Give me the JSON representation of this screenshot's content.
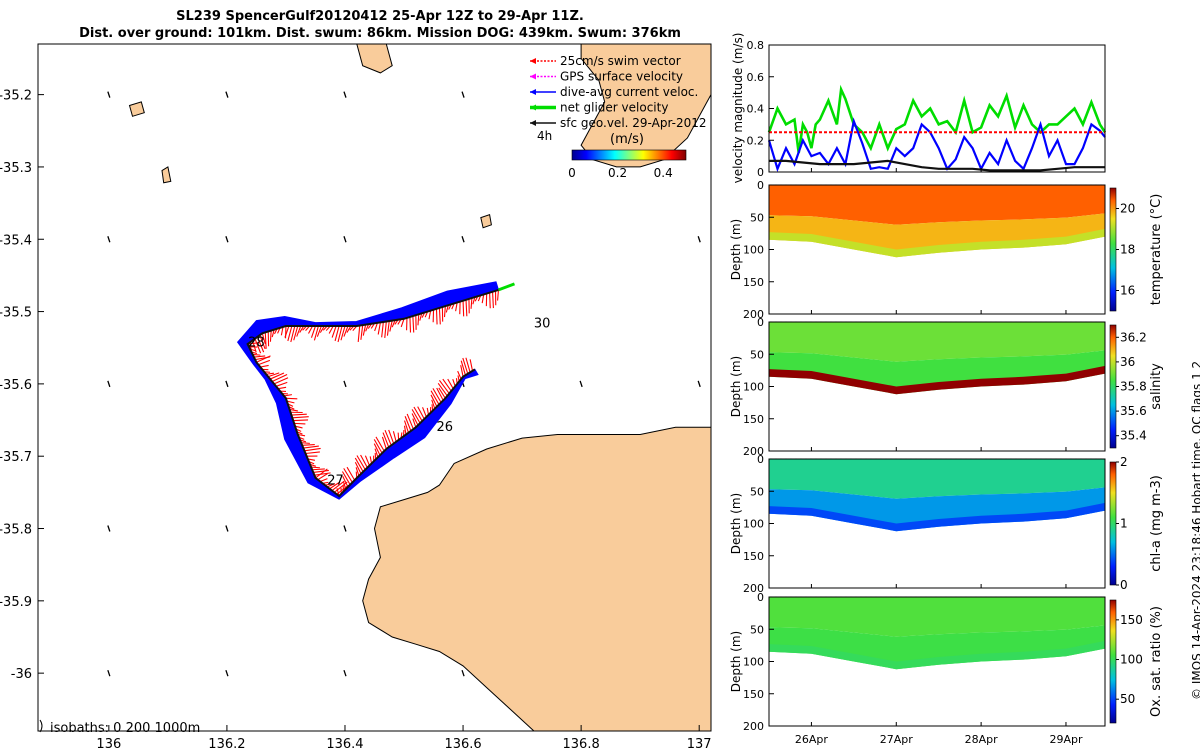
{
  "title": {
    "line1": "SL239 SpencerGulf20120412 25-Apr 12Z to 29-Apr 11Z.",
    "line2": "Dist. over ground: 101km. Dist. swum: 86km. Mission DOG: 439km. Swum: 376km"
  },
  "credit": "© IMOS 14-Apr-2024 23:18:46 Hobart time. QC flags 1  2",
  "colors": {
    "land": "#f9cc9b",
    "swim_vector": "#ff0000",
    "dive_avg_current": "#0000ff",
    "net_glider": "#00dd00",
    "sfc_geo": "#111111",
    "gps_surface": "#ff00ff"
  },
  "chart_data": [
    {
      "type": "map",
      "xlim": [
        135.88,
        137.02
      ],
      "ylim": [
        -36.08,
        -35.13
      ],
      "x_ticks": [
        "136",
        "136.2",
        "136.4",
        "136.6",
        "136.8",
        "137"
      ],
      "x_tick_values": [
        136,
        136.2,
        136.4,
        136.6,
        136.8,
        137
      ],
      "y_ticks": [
        "-35.2",
        "-35.3",
        "-35.4",
        "-35.5",
        "-35.6",
        "-35.7",
        "-35.8",
        "-35.9",
        "-36"
      ],
      "y_tick_values": [
        -35.2,
        -35.3,
        -35.4,
        -35.5,
        -35.6,
        -35.7,
        -35.8,
        -35.9,
        -36
      ],
      "legend": [
        {
          "label": "25cm/s swim vector",
          "color": "#ff0000",
          "style": "dashed"
        },
        {
          "label": "GPS surface velocity",
          "color": "#ff00ff",
          "style": "dashed"
        },
        {
          "label": "dive-avg current veloc.",
          "color": "#0000ff",
          "style": "solid"
        },
        {
          "label": "net glider velocity",
          "color": "#00dd00",
          "style": "thick"
        },
        {
          "label": "sfc geo.vel. 29-Apr-2012",
          "color": "#111111",
          "style": "solid"
        }
      ],
      "legend_placement": "top-right",
      "colorbar": {
        "label": "(m/s)",
        "ticks": [
          "0",
          "0.2",
          "0.4"
        ],
        "tick_values": [
          0,
          0.2,
          0.4
        ],
        "range": [
          0,
          0.5
        ]
      },
      "time_marker_label": "4h",
      "isobath_label": "isobaths: 0   200  1000m",
      "day_labels": [
        {
          "text": "26",
          "lon": 136.555,
          "lat": -35.665
        },
        {
          "text": "27",
          "lon": 136.37,
          "lat": -35.739
        },
        {
          "text": "28",
          "lon": 136.236,
          "lat": -35.548
        },
        {
          "text": "30",
          "lon": 136.72,
          "lat": -35.522
        }
      ],
      "glider_track": [
        [
          136.66,
          -35.47
        ],
        [
          136.58,
          -35.49
        ],
        [
          136.5,
          -35.51
        ],
        [
          136.42,
          -35.52
        ],
        [
          136.35,
          -35.52
        ],
        [
          136.3,
          -35.52
        ],
        [
          136.26,
          -35.53
        ],
        [
          136.235,
          -35.545
        ],
        [
          136.25,
          -35.57
        ],
        [
          136.27,
          -35.59
        ],
        [
          136.3,
          -35.62
        ],
        [
          136.32,
          -35.67
        ],
        [
          136.35,
          -35.73
        ],
        [
          136.39,
          -35.755
        ],
        [
          136.42,
          -35.73
        ],
        [
          136.47,
          -35.69
        ],
        [
          136.52,
          -35.66
        ],
        [
          136.57,
          -35.62
        ],
        [
          136.6,
          -35.59
        ],
        [
          136.62,
          -35.58
        ]
      ],
      "grid_current_vectors": [
        [
          136.0,
          -35.2
        ],
        [
          136.2,
          -35.2
        ],
        [
          136.4,
          -35.2
        ],
        [
          136.6,
          -35.2
        ],
        [
          136.0,
          -35.4
        ],
        [
          136.2,
          -35.4
        ],
        [
          136.4,
          -35.4
        ],
        [
          136.6,
          -35.4
        ],
        [
          137.0,
          -35.4
        ],
        [
          136.0,
          -35.6
        ],
        [
          136.2,
          -35.6
        ],
        [
          136.4,
          -35.6
        ],
        [
          136.6,
          -35.6
        ],
        [
          136.8,
          -35.6
        ],
        [
          137.0,
          -35.6
        ],
        [
          136.0,
          -35.8
        ],
        [
          136.2,
          -35.8
        ],
        [
          136.4,
          -35.8
        ],
        [
          136.0,
          -36.0
        ],
        [
          136.2,
          -36.0
        ],
        [
          136.4,
          -36.0
        ],
        [
          136.6,
          -36.0
        ]
      ],
      "land_kangaroo_island": [
        [
          136.585,
          -35.71
        ],
        [
          136.64,
          -35.69
        ],
        [
          136.7,
          -35.675
        ],
        [
          136.76,
          -35.67
        ],
        [
          136.82,
          -35.67
        ],
        [
          136.9,
          -35.67
        ],
        [
          136.96,
          -35.66
        ],
        [
          137.02,
          -35.66
        ],
        [
          137.02,
          -36.08
        ],
        [
          136.72,
          -36.08
        ],
        [
          136.68,
          -36.05
        ],
        [
          136.64,
          -36.02
        ],
        [
          136.6,
          -35.99
        ],
        [
          136.56,
          -35.97
        ],
        [
          136.52,
          -35.96
        ],
        [
          136.48,
          -35.95
        ],
        [
          136.44,
          -35.93
        ],
        [
          136.43,
          -35.9
        ],
        [
          136.44,
          -35.87
        ],
        [
          136.46,
          -35.84
        ],
        [
          136.45,
          -35.8
        ],
        [
          136.46,
          -35.77
        ],
        [
          136.5,
          -35.76
        ],
        [
          136.54,
          -35.75
        ],
        [
          136.56,
          -35.74
        ]
      ],
      "land_peninsula_ne": [
        [
          136.8,
          -35.13
        ],
        [
          137.02,
          -35.13
        ],
        [
          137.02,
          -35.2
        ],
        [
          137.0,
          -35.23
        ],
        [
          136.98,
          -35.26
        ],
        [
          136.94,
          -35.29
        ],
        [
          136.9,
          -35.3
        ],
        [
          136.86,
          -35.3
        ],
        [
          136.82,
          -35.29
        ],
        [
          136.8,
          -35.27
        ],
        [
          136.82,
          -35.24
        ],
        [
          136.84,
          -35.21
        ],
        [
          136.83,
          -35.18
        ],
        [
          136.8,
          -35.15
        ]
      ],
      "land_islets": [
        [
          [
            136.42,
            -35.13
          ],
          [
            136.47,
            -35.13
          ],
          [
            136.48,
            -35.16
          ],
          [
            136.46,
            -35.17
          ],
          [
            136.43,
            -35.16
          ]
        ],
        [
          [
            136.035,
            -35.215
          ],
          [
            136.055,
            -35.21
          ],
          [
            136.06,
            -35.225
          ],
          [
            136.04,
            -35.23
          ]
        ],
        [
          [
            136.09,
            -35.305
          ],
          [
            136.1,
            -35.3
          ],
          [
            136.105,
            -35.32
          ],
          [
            136.093,
            -35.322
          ]
        ],
        [
          [
            136.63,
            -35.37
          ],
          [
            136.645,
            -35.366
          ],
          [
            136.648,
            -35.38
          ],
          [
            136.634,
            -35.384
          ]
        ]
      ]
    },
    {
      "type": "line",
      "ylabel": "velocity magnitude (m/s)",
      "ylim": [
        0,
        0.8
      ],
      "y_ticks": [
        "0",
        "0.2",
        "0.4",
        "0.6",
        "0.8"
      ],
      "x_range_days": [
        25.5,
        29.46
      ],
      "series": [
        {
          "color": "#00dd00",
          "x": [
            25.5,
            25.6,
            25.7,
            25.8,
            25.85,
            25.9,
            25.95,
            26.0,
            26.05,
            26.1,
            26.2,
            26.3,
            26.35,
            26.4,
            26.5,
            26.6,
            26.7,
            26.8,
            26.9,
            27.0,
            27.1,
            27.2,
            27.3,
            27.4,
            27.5,
            27.6,
            27.7,
            27.8,
            27.9,
            28.0,
            28.1,
            28.2,
            28.3,
            28.4,
            28.5,
            28.6,
            28.7,
            28.8,
            28.9,
            29.0,
            29.1,
            29.2,
            29.3,
            29.4,
            29.46
          ],
          "values": [
            0.25,
            0.4,
            0.3,
            0.33,
            0.12,
            0.3,
            0.25,
            0.15,
            0.3,
            0.33,
            0.45,
            0.3,
            0.52,
            0.46,
            0.3,
            0.25,
            0.15,
            0.3,
            0.15,
            0.27,
            0.3,
            0.45,
            0.35,
            0.4,
            0.3,
            0.32,
            0.25,
            0.45,
            0.25,
            0.28,
            0.42,
            0.35,
            0.48,
            0.28,
            0.42,
            0.3,
            0.25,
            0.3,
            0.3,
            0.35,
            0.4,
            0.3,
            0.44,
            0.3,
            0.25
          ]
        },
        {
          "color": "#0000ff",
          "x": [
            25.5,
            25.6,
            25.7,
            25.8,
            25.9,
            26.0,
            26.1,
            26.2,
            26.3,
            26.4,
            26.5,
            26.6,
            26.7,
            26.8,
            26.9,
            27.0,
            27.1,
            27.2,
            27.3,
            27.4,
            27.5,
            27.6,
            27.7,
            27.8,
            27.9,
            28.0,
            28.1,
            28.2,
            28.3,
            28.4,
            28.5,
            28.6,
            28.7,
            28.8,
            28.9,
            29.0,
            29.1,
            29.2,
            29.3,
            29.4,
            29.46
          ],
          "values": [
            0.2,
            0.02,
            0.15,
            0.05,
            0.2,
            0.1,
            0.12,
            0.05,
            0.15,
            0.05,
            0.32,
            0.18,
            0.02,
            0.03,
            0.02,
            0.15,
            0.1,
            0.15,
            0.3,
            0.25,
            0.15,
            0.02,
            0.08,
            0.22,
            0.15,
            0.02,
            0.12,
            0.05,
            0.2,
            0.07,
            0.02,
            0.15,
            0.3,
            0.1,
            0.2,
            0.05,
            0.05,
            0.15,
            0.3,
            0.26,
            0.22
          ]
        },
        {
          "color": "#111111",
          "x": [
            25.5,
            25.7,
            25.9,
            26.1,
            26.3,
            26.5,
            26.7,
            26.9,
            27.1,
            27.3,
            27.5,
            27.7,
            27.9,
            28.1,
            28.3,
            28.5,
            28.7,
            28.9,
            29.1,
            29.3,
            29.46
          ],
          "values": [
            0.07,
            0.07,
            0.06,
            0.05,
            0.05,
            0.05,
            0.06,
            0.07,
            0.05,
            0.03,
            0.02,
            0.02,
            0.02,
            0.01,
            0.01,
            0.01,
            0.01,
            0.02,
            0.03,
            0.03,
            0.03
          ]
        },
        {
          "color": "#ff0000",
          "style": "dashed",
          "x": [
            25.5,
            29.46
          ],
          "values": [
            0.25,
            0.25
          ]
        }
      ]
    },
    {
      "type": "heatmap",
      "variable": "temperature",
      "ylabel": "Depth (m)",
      "colorbar_label": "temperature (°C)",
      "colorbar_ticks": [
        "16",
        "18",
        "20"
      ],
      "color_range": [
        15,
        21
      ],
      "y_ticks": [
        "0",
        "50",
        "100",
        "150",
        "200"
      ],
      "ylim": [
        0,
        200
      ],
      "bottom_depth": [
        [
          25.5,
          85
        ],
        [
          26.0,
          88
        ],
        [
          26.5,
          100
        ],
        [
          27.0,
          112
        ],
        [
          27.5,
          105
        ],
        [
          28.0,
          100
        ],
        [
          28.5,
          97
        ],
        [
          29.0,
          92
        ],
        [
          29.46,
          80
        ]
      ],
      "upper_value": 20.4,
      "lower_value": 19.8,
      "bottom_value": 19.2
    },
    {
      "type": "heatmap",
      "variable": "salinity",
      "ylabel": "Depth (m)",
      "colorbar_label": "salinity",
      "colorbar_ticks": [
        "35.4",
        "35.6",
        "35.8",
        "36",
        "36.2"
      ],
      "color_range": [
        35.3,
        36.3
      ],
      "y_ticks": [
        "0",
        "50",
        "100",
        "150",
        "200"
      ],
      "ylim": [
        0,
        200
      ],
      "bottom_depth": [
        [
          25.5,
          85
        ],
        [
          26.0,
          88
        ],
        [
          26.5,
          100
        ],
        [
          27.0,
          112
        ],
        [
          27.5,
          105
        ],
        [
          28.0,
          100
        ],
        [
          28.5,
          97
        ],
        [
          29.0,
          92
        ],
        [
          29.46,
          80
        ]
      ],
      "upper_value": 35.9,
      "lower_value": 35.85,
      "bottom_value": 36.3
    },
    {
      "type": "heatmap",
      "variable": "chl-a",
      "ylabel": "Depth (m)",
      "colorbar_label": "chl-a (mg m-3)",
      "colorbar_ticks": [
        "0",
        "1",
        "2"
      ],
      "color_range": [
        0,
        2
      ],
      "y_ticks": [
        "0",
        "50",
        "100",
        "150",
        "200"
      ],
      "ylim": [
        0,
        200
      ],
      "bottom_depth": [
        [
          25.5,
          85
        ],
        [
          26.0,
          88
        ],
        [
          26.5,
          100
        ],
        [
          27.0,
          112
        ],
        [
          27.5,
          105
        ],
        [
          28.0,
          100
        ],
        [
          28.5,
          97
        ],
        [
          29.0,
          92
        ],
        [
          29.46,
          80
        ]
      ],
      "upper_value": 0.9,
      "lower_value": 0.6,
      "bottom_value": 0.4
    },
    {
      "type": "heatmap",
      "variable": "oxygen saturation",
      "ylabel": "Depth (m)",
      "colorbar_label": "Ox. sat. ratio (%)",
      "colorbar_ticks": [
        "50",
        "100",
        "150"
      ],
      "color_range": [
        20,
        175
      ],
      "y_ticks": [
        "0",
        "50",
        "100",
        "150",
        "200"
      ],
      "ylim": [
        0,
        200
      ],
      "bottom_depth": [
        [
          25.5,
          85
        ],
        [
          26.0,
          88
        ],
        [
          26.5,
          100
        ],
        [
          27.0,
          112
        ],
        [
          27.5,
          105
        ],
        [
          28.0,
          100
        ],
        [
          28.5,
          97
        ],
        [
          29.0,
          92
        ],
        [
          29.46,
          80
        ]
      ],
      "upper_value": 108,
      "lower_value": 104,
      "bottom_value": 100
    }
  ],
  "time_axis": {
    "tick_values": [
      26,
      27,
      28,
      29
    ],
    "tick_labels": [
      "26Apr",
      "27Apr",
      "28Apr",
      "29Apr"
    ]
  }
}
